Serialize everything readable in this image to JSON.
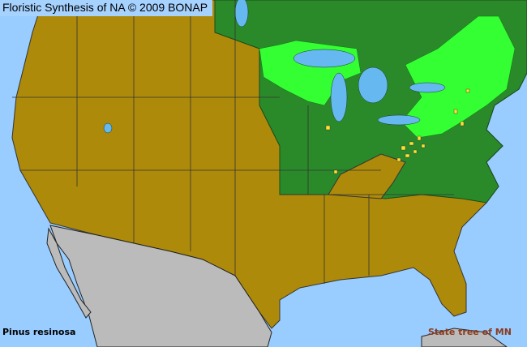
{
  "header": {
    "title": "Floristic Synthesis of NA © 2009 BONAP"
  },
  "footer": {
    "species": "Pinus resinosa",
    "note": "State tree of MN"
  },
  "colors": {
    "water": "#99CCFF",
    "absent": "#AD8A0A",
    "present_state": "#2A8A2A",
    "present_county": "#33FF33",
    "rare_or_introduced": "#FFE033",
    "outside_range": "#BBBBBB"
  }
}
